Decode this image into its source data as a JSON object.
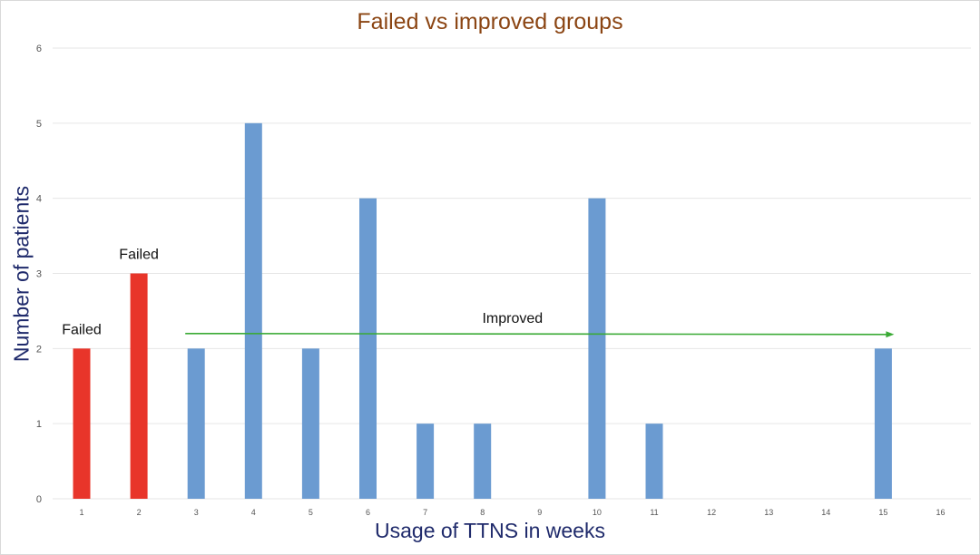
{
  "chart_data": {
    "type": "bar",
    "title": "Failed vs improved groups",
    "xlabel": "Usage of TTNS in weeks",
    "ylabel": "Number of patients",
    "categories": [
      "1",
      "2",
      "3",
      "4",
      "5",
      "6",
      "7",
      "8",
      "9",
      "10",
      "11",
      "12",
      "13",
      "14",
      "15",
      "16"
    ],
    "values": [
      2,
      3,
      2,
      5,
      2,
      4,
      1,
      1,
      0,
      4,
      1,
      0,
      0,
      0,
      2,
      0
    ],
    "ylim": [
      0,
      6
    ],
    "yticks": [
      "0",
      "1",
      "2",
      "3",
      "4",
      "5",
      "6"
    ],
    "grid": true,
    "colors": {
      "failed": "#e8352a",
      "improved": "#6b9bd1",
      "arrow": "#3aaa35",
      "title": "#8b4513",
      "axis_label": "#1f2a6b",
      "grid": "#e6e6e6"
    },
    "failed_categories": [
      "1",
      "2"
    ],
    "annotations": [
      {
        "text": "Failed",
        "category": "1",
        "value": 2
      },
      {
        "text": "Failed",
        "category": "2",
        "value": 3
      },
      {
        "text": "Improved",
        "from_category": "3",
        "to_category": "15",
        "value": 2.2
      }
    ]
  }
}
